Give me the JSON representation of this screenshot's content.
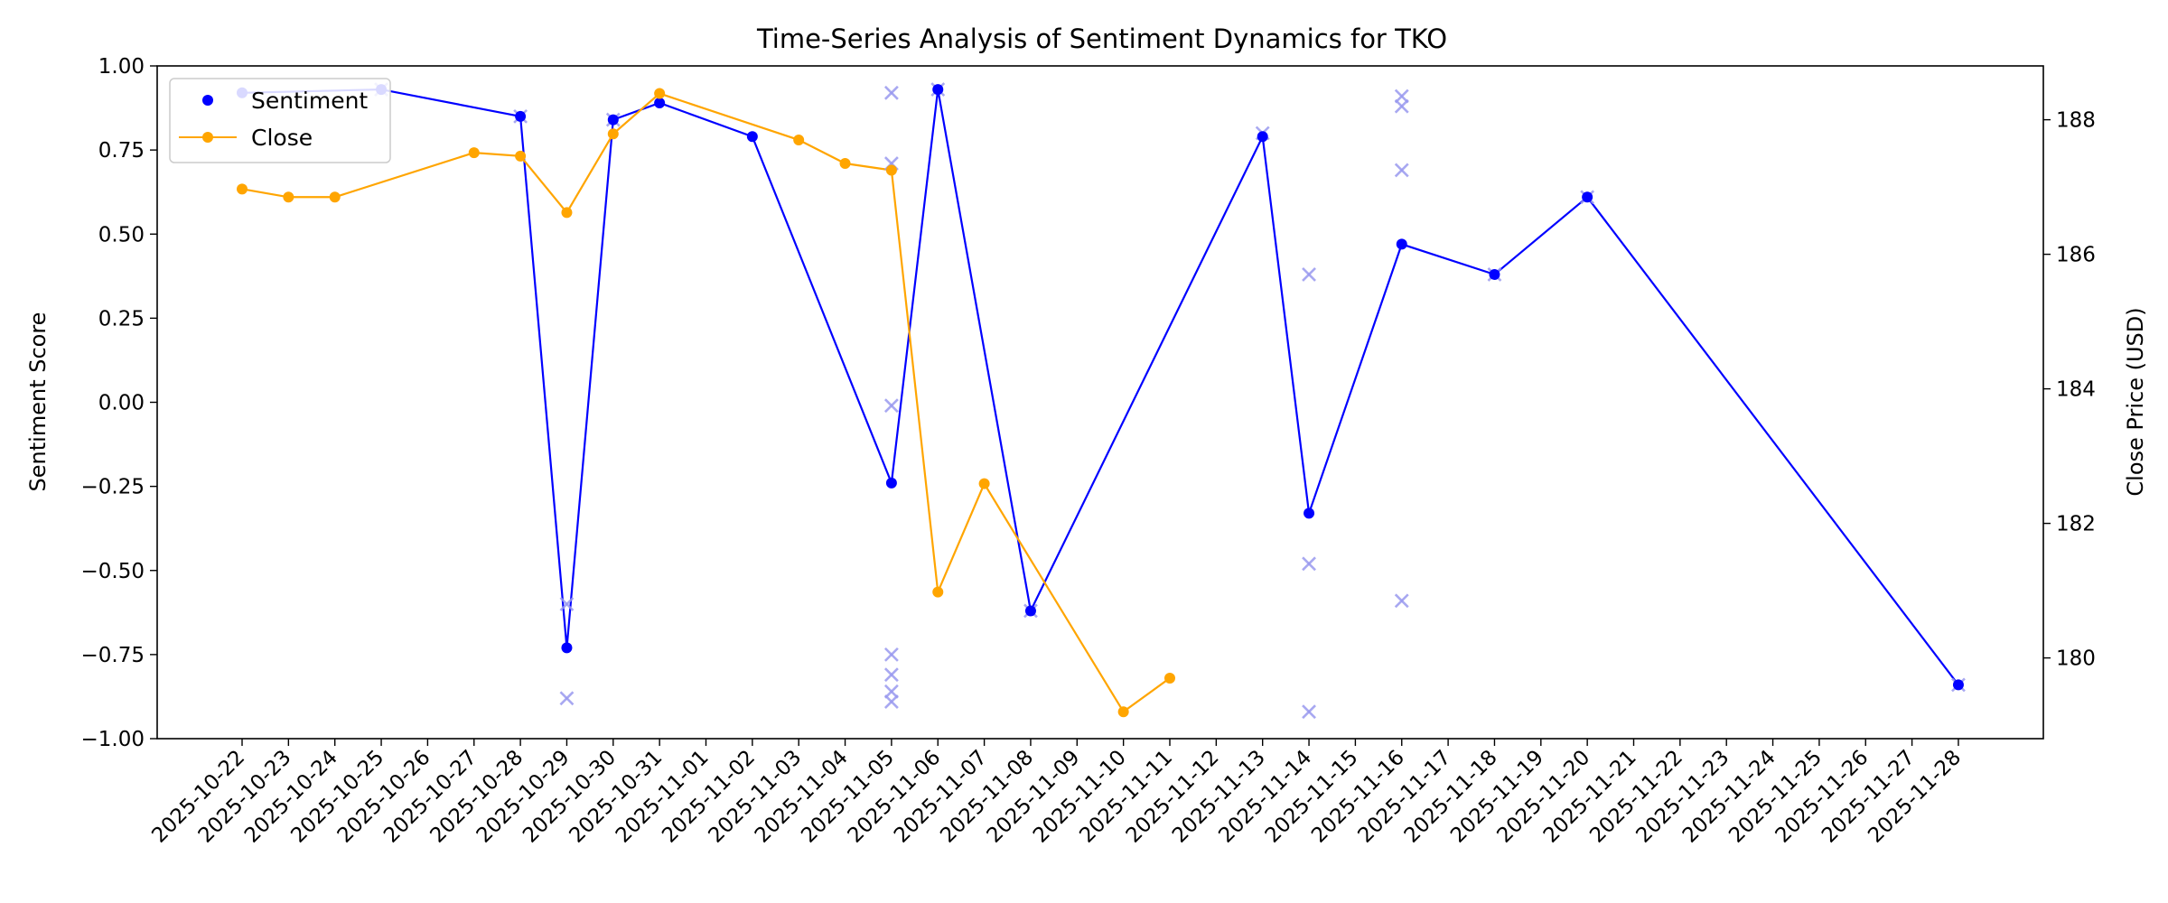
{
  "chart_data": {
    "type": "line",
    "title": "Time-Series Analysis of Sentiment Dynamics for TKO",
    "xlabel": "",
    "ylabel_left": "Sentiment Score",
    "ylabel_right": "Close Price (USD)",
    "x_ticks": [
      "2025-10-22",
      "2025-10-23",
      "2025-10-24",
      "2025-10-25",
      "2025-10-26",
      "2025-10-27",
      "2025-10-28",
      "2025-10-29",
      "2025-10-30",
      "2025-10-31",
      "2025-11-01",
      "2025-11-02",
      "2025-11-03",
      "2025-11-04",
      "2025-11-05",
      "2025-11-06",
      "2025-11-07",
      "2025-11-08",
      "2025-11-09",
      "2025-11-10",
      "2025-11-11",
      "2025-11-12",
      "2025-11-13",
      "2025-11-14",
      "2025-11-15",
      "2025-11-16",
      "2025-11-17",
      "2025-11-18",
      "2025-11-19",
      "2025-11-20",
      "2025-11-21",
      "2025-11-22",
      "2025-11-23",
      "2025-11-24",
      "2025-11-25",
      "2025-11-26",
      "2025-11-27",
      "2025-11-28"
    ],
    "ylim_left": [
      -1.0,
      1.0
    ],
    "yticks_left": [
      "1.00",
      "0.75",
      "0.50",
      "0.25",
      "0.00",
      "−0.25",
      "−0.50",
      "−0.75",
      "−1.00"
    ],
    "ytick_values_left": [
      1.0,
      0.75,
      0.5,
      0.25,
      0.0,
      -0.25,
      -0.5,
      -0.75,
      -1.0
    ],
    "ylim_right": [
      178.8,
      188.8
    ],
    "yticks_right": [
      "180",
      "182",
      "184",
      "186",
      "188"
    ],
    "ytick_values_right": [
      180,
      182,
      184,
      186,
      188
    ],
    "legend_placement": "top-left",
    "colors": {
      "sentiment": "#0000ff",
      "close": "#ffa500",
      "raw": "#9999ee"
    },
    "series": [
      {
        "name": "Sentiment",
        "axis": "left",
        "marker": "dot",
        "points": [
          {
            "x": "2025-10-22",
            "y": 0.92
          },
          {
            "x": "2025-10-25",
            "y": 0.93
          },
          {
            "x": "2025-10-28",
            "y": 0.85
          },
          {
            "x": "2025-10-29",
            "y": -0.73
          },
          {
            "x": "2025-10-30",
            "y": 0.84
          },
          {
            "x": "2025-10-31",
            "y": 0.89
          },
          {
            "x": "2025-11-02",
            "y": 0.79
          },
          {
            "x": "2025-11-05",
            "y": -0.24
          },
          {
            "x": "2025-11-06",
            "y": 0.93
          },
          {
            "x": "2025-11-08",
            "y": -0.62
          },
          {
            "x": "2025-11-13",
            "y": 0.79
          },
          {
            "x": "2025-11-14",
            "y": -0.33
          },
          {
            "x": "2025-11-16",
            "y": 0.47
          },
          {
            "x": "2025-11-18",
            "y": 0.38
          },
          {
            "x": "2025-11-20",
            "y": 0.61
          },
          {
            "x": "2025-11-28",
            "y": -0.84
          }
        ]
      },
      {
        "name": "Close",
        "axis": "right",
        "marker": "dot",
        "points": [
          {
            "x": "2025-10-22",
            "y": 186.97
          },
          {
            "x": "2025-10-23",
            "y": 186.85
          },
          {
            "x": "2025-10-24",
            "y": 186.85
          },
          {
            "x": "2025-10-27",
            "y": 187.51
          },
          {
            "x": "2025-10-28",
            "y": 187.46
          },
          {
            "x": "2025-10-29",
            "y": 186.62
          },
          {
            "x": "2025-10-30",
            "y": 187.79
          },
          {
            "x": "2025-10-31",
            "y": 188.39
          },
          {
            "x": "2025-11-03",
            "y": 187.7
          },
          {
            "x": "2025-11-04",
            "y": 187.35
          },
          {
            "x": "2025-11-05",
            "y": 187.25
          },
          {
            "x": "2025-11-06",
            "y": 180.98
          },
          {
            "x": "2025-11-07",
            "y": 182.59
          },
          {
            "x": "2025-11-10",
            "y": 179.2
          },
          {
            "x": "2025-11-11",
            "y": 179.7
          }
        ]
      },
      {
        "axis": "left",
        "marker": "x",
        "points": [
          {
            "x": "2025-10-25",
            "y": 0.93
          },
          {
            "x": "2025-10-28",
            "y": 0.85
          },
          {
            "x": "2025-10-29",
            "y": -0.6
          },
          {
            "x": "2025-10-29",
            "y": -0.88
          },
          {
            "x": "2025-10-30",
            "y": 0.84
          },
          {
            "x": "2025-11-05",
            "y": 0.92
          },
          {
            "x": "2025-11-05",
            "y": 0.71
          },
          {
            "x": "2025-11-05",
            "y": -0.01
          },
          {
            "x": "2025-11-05",
            "y": -0.75
          },
          {
            "x": "2025-11-05",
            "y": -0.81
          },
          {
            "x": "2025-11-05",
            "y": -0.86
          },
          {
            "x": "2025-11-05",
            "y": -0.89
          },
          {
            "x": "2025-11-06",
            "y": 0.93
          },
          {
            "x": "2025-11-08",
            "y": -0.62
          },
          {
            "x": "2025-11-13",
            "y": 0.8
          },
          {
            "x": "2025-11-14",
            "y": 0.38
          },
          {
            "x": "2025-11-14",
            "y": -0.48
          },
          {
            "x": "2025-11-14",
            "y": -0.92
          },
          {
            "x": "2025-11-16",
            "y": 0.91
          },
          {
            "x": "2025-11-16",
            "y": 0.88
          },
          {
            "x": "2025-11-16",
            "y": 0.69
          },
          {
            "x": "2025-11-16",
            "y": -0.59
          },
          {
            "x": "2025-11-18",
            "y": 0.38
          },
          {
            "x": "2025-11-20",
            "y": 0.61
          },
          {
            "x": "2025-11-28",
            "y": -0.84
          }
        ]
      }
    ]
  }
}
